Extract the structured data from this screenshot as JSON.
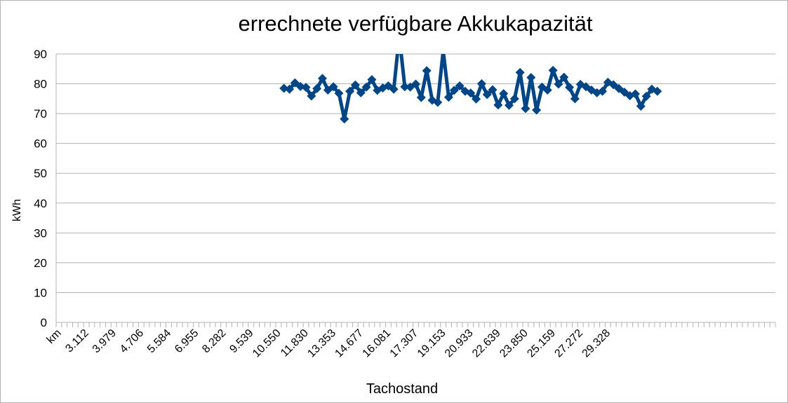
{
  "chart_data": {
    "type": "line",
    "title": "errechnete verfügbare Akkukapazität",
    "xlabel": "Tachostand",
    "ylabel": "kWh",
    "ylim": [
      0,
      90
    ],
    "yticks": [
      0,
      10,
      20,
      30,
      40,
      50,
      60,
      70,
      80,
      90
    ],
    "grid": true,
    "legend": "none",
    "category_count": 131,
    "x_tick_labels": [
      "km",
      "3.112",
      "3.979",
      "4.706",
      "5.584",
      "6.955",
      "8.282",
      "9.539",
      "10.550",
      "11.830",
      "13.353",
      "14.677",
      "16.081",
      "17.307",
      "19.153",
      "20.933",
      "22.639",
      "23.850",
      "25.159",
      "27.272",
      "29.328"
    ],
    "x_tick_label_every": 5,
    "series": [
      {
        "color": "#004586",
        "marker": "diamond",
        "start_index": 41,
        "values": [
          78.5,
          78.2,
          80.3,
          79.1,
          78.8,
          75.9,
          78.4,
          81.8,
          77.9,
          79.0,
          76.8,
          68.2,
          77.5,
          79.6,
          77.0,
          78.9,
          81.4,
          77.8,
          78.6,
          79.3,
          78.2,
          96.0,
          79.0,
          78.9,
          79.9,
          75.4,
          84.4,
          74.5,
          73.8,
          91.0,
          75.5,
          77.8,
          79.3,
          77.5,
          76.9,
          74.9,
          80.0,
          76.4,
          78.0,
          72.9,
          76.7,
          72.8,
          75.0,
          83.8,
          71.7,
          82.1,
          71.2,
          78.9,
          77.9,
          84.5,
          79.9,
          82.2,
          78.8,
          75.0,
          79.8,
          79.0,
          77.9,
          77.0,
          77.5,
          80.5,
          79.7,
          78.4,
          77.2,
          76.0,
          76.6,
          72.5,
          75.8,
          78.2,
          77.5
        ]
      }
    ]
  }
}
